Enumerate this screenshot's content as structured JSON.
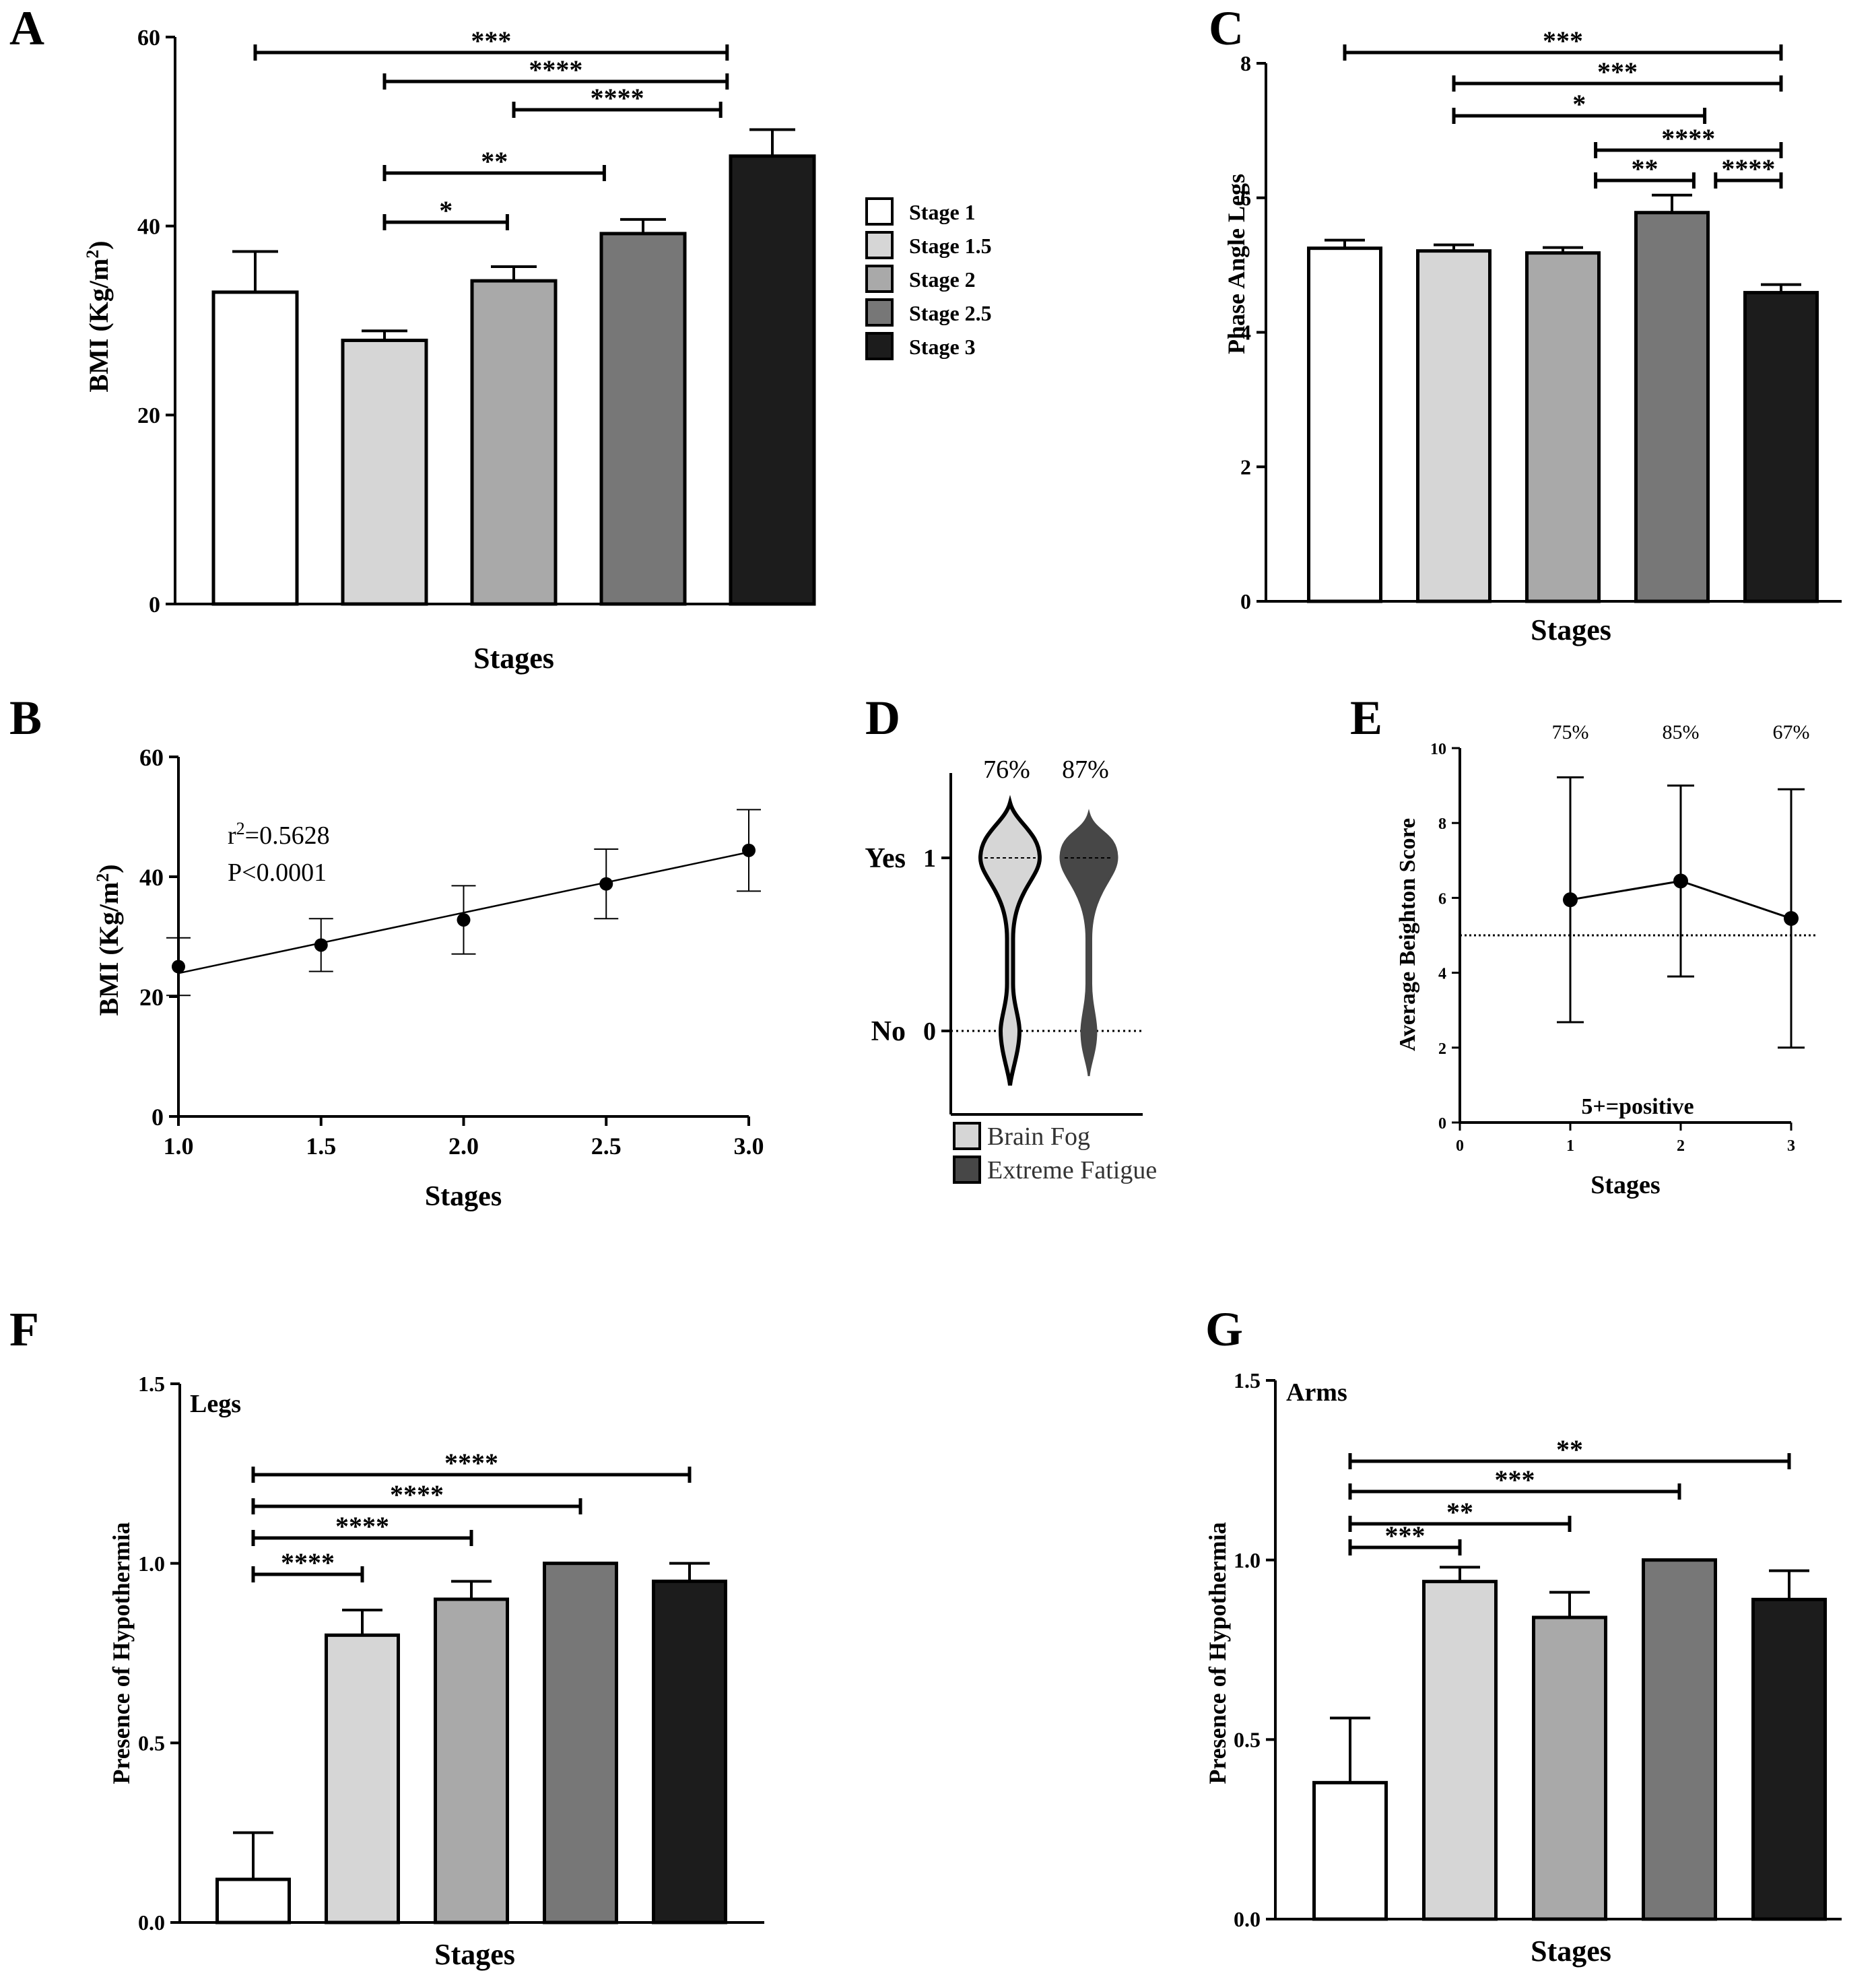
{
  "colors": {
    "stage1": "#ffffff",
    "stage1_5": "#d6d6d6",
    "stage2": "#a9a9a9",
    "stage2_5": "#777777",
    "stage3": "#1c1c1c",
    "ink": "#000000"
  },
  "chart_data": [
    {
      "panel": "A",
      "type": "bar",
      "xlabel": "Stages",
      "ylabel": "BMI (Kg/m2)",
      "ylim": [
        0,
        60
      ],
      "yticks": [
        "0",
        "20",
        "40",
        "60"
      ],
      "categories": [
        "Stage 1",
        "Stage 1.5",
        "Stage 2",
        "Stage 2.5",
        "Stage 3"
      ],
      "values": [
        33,
        27.9,
        34.2,
        39.2,
        47.4
      ],
      "errors": [
        4.3,
        1.0,
        1.5,
        1.5,
        2.8
      ],
      "legend": [
        "Stage 1",
        "Stage 1.5",
        "Stage 2",
        "Stage 2.5",
        "Stage 3"
      ],
      "significance": [
        {
          "from": 0,
          "to": 3.65,
          "label": "***"
        },
        {
          "from": 1,
          "to": 3.65,
          "label": "****"
        },
        {
          "from": 2,
          "to": 3.6,
          "label": "****"
        },
        {
          "from": 1,
          "to": 2.7,
          "label": "**"
        },
        {
          "from": 1,
          "to": 1.95,
          "label": "*"
        }
      ]
    },
    {
      "panel": "B",
      "type": "scatter",
      "xlabel": "Stages",
      "ylabel": "BMI (Kg/m2)",
      "xlim": [
        1.0,
        3.0
      ],
      "ylim": [
        0,
        60
      ],
      "xticks": [
        "1.0",
        "1.5",
        "2.0",
        "2.5",
        "3.0"
      ],
      "yticks": [
        "0",
        "20",
        "40",
        "60"
      ],
      "x": [
        1.0,
        1.5,
        2.0,
        2.5,
        3.0
      ],
      "y": [
        25.0,
        28.6,
        32.8,
        38.8,
        44.4
      ],
      "err_low": [
        4.8,
        4.4,
        5.7,
        5.8,
        6.8
      ],
      "err_high": [
        4.8,
        4.4,
        5.7,
        5.8,
        6.8
      ],
      "fit_line": {
        "x": [
          1.0,
          3.0
        ],
        "y": [
          23.9,
          44.1
        ]
      },
      "annotation": {
        "r2_base": "r",
        "r2_sup": "2",
        "r2_value": "=0.5628",
        "p_value": "P<0.0001"
      }
    },
    {
      "panel": "C",
      "type": "bar",
      "xlabel": "Stages",
      "ylabel": "Phase Angle Legs",
      "ylim": [
        0,
        8
      ],
      "yticks": [
        "0",
        "2",
        "4",
        "6",
        "8"
      ],
      "categories": [
        "Stage 1",
        "Stage 1.5",
        "Stage 2",
        "Stage 2.5",
        "Stage 3"
      ],
      "values": [
        5.25,
        5.21,
        5.18,
        5.78,
        4.59
      ],
      "errors": [
        0.12,
        0.09,
        0.08,
        0.26,
        0.12
      ],
      "significance": [
        {
          "from": 0,
          "to": 4,
          "label": "***"
        },
        {
          "from": 1,
          "to": 4,
          "label": "***"
        },
        {
          "from": 1,
          "to": 3.3,
          "label": "*"
        },
        {
          "from": 2.3,
          "to": 4,
          "label": "****"
        },
        {
          "from": 2.3,
          "to": 3.2,
          "label": "**"
        },
        {
          "from": 3.4,
          "to": 4,
          "label": "****"
        }
      ]
    },
    {
      "panel": "D",
      "type": "violin",
      "yticks": [
        "0",
        "1"
      ],
      "ycategory_labels": [
        "No",
        "Yes"
      ],
      "series": [
        {
          "name": "Brain Fog",
          "percent_yes": "76%",
          "fill": "#d6d6d6"
        },
        {
          "name": "Extreme Fatigue",
          "percent_yes": "87%",
          "fill": "#474747"
        }
      ]
    },
    {
      "panel": "E",
      "type": "line",
      "xlabel": "Stages",
      "ylabel": "Average Beighton Score",
      "xlim": [
        0,
        3
      ],
      "ylim": [
        0,
        10
      ],
      "xticks": [
        "0",
        "1",
        "2",
        "3"
      ],
      "yticks": [
        "0",
        "2",
        "4",
        "6",
        "8",
        "10"
      ],
      "x": [
        1,
        2,
        3
      ],
      "y": [
        5.95,
        6.45,
        5.45
      ],
      "err_low": [
        3.27,
        2.55,
        3.45
      ],
      "err_high": [
        3.27,
        2.55,
        3.45
      ],
      "threshold": 5,
      "threshold_label": "5+=positive",
      "point_labels": [
        "75%",
        "85%",
        "67%"
      ]
    },
    {
      "panel": "F",
      "type": "bar",
      "subtitle": "Legs",
      "xlabel": "Stages",
      "ylabel": "Presence of Hypothermia",
      "ylim": [
        0,
        1.5
      ],
      "yticks": [
        "0.0",
        "0.5",
        "1.0",
        "1.5"
      ],
      "categories": [
        "Stage 1",
        "Stage 1.5",
        "Stage 2",
        "Stage 2.5",
        "Stage 3"
      ],
      "values": [
        0.12,
        0.8,
        0.9,
        1.0,
        0.95
      ],
      "errors": [
        0.13,
        0.07,
        0.05,
        0,
        0.05
      ],
      "significance": [
        {
          "from": 0,
          "to": 1,
          "label": "****"
        },
        {
          "from": 0,
          "to": 2,
          "label": "****"
        },
        {
          "from": 0,
          "to": 3,
          "label": "****"
        },
        {
          "from": 0,
          "to": 4,
          "label": "****"
        }
      ]
    },
    {
      "panel": "G",
      "type": "bar",
      "subtitle": "Arms",
      "xlabel": "Stages",
      "ylabel": "Presence of Hypothermia",
      "ylim": [
        0,
        1.5
      ],
      "yticks": [
        "0.0",
        "0.5",
        "1.0",
        "1.5"
      ],
      "categories": [
        "Stage 1",
        "Stage 1.5",
        "Stage 2",
        "Stage 2.5",
        "Stage 3"
      ],
      "values": [
        0.38,
        0.94,
        0.84,
        1.0,
        0.89
      ],
      "errors": [
        0.18,
        0.04,
        0.07,
        0,
        0.08
      ],
      "significance": [
        {
          "from": 0,
          "to": 1,
          "label": "***"
        },
        {
          "from": 0,
          "to": 2,
          "label": "**"
        },
        {
          "from": 0,
          "to": 3,
          "label": "***"
        },
        {
          "from": 0,
          "to": 4,
          "label": "**"
        }
      ]
    }
  ],
  "panel_letters": [
    "A",
    "B",
    "C",
    "D",
    "E",
    "F",
    "G"
  ]
}
